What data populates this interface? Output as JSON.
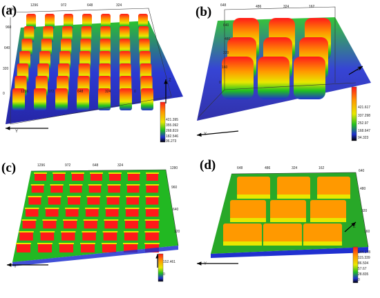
{
  "panels": [
    {
      "label": "(a)",
      "top_ticks": [
        "1296",
        "972",
        "648",
        "324"
      ],
      "left_ticks": [
        "1296",
        "960",
        "640",
        "320",
        "0"
      ],
      "bottom_ticks": [
        "1296",
        "972",
        "648",
        "324",
        "0"
      ],
      "axis_z": "Z",
      "axis_y": "Y",
      "colorbar": [
        "421.395",
        "355.092",
        "268.819",
        "182.546",
        "96.273"
      ]
    },
    {
      "label": "(b)",
      "top_ticks": [
        "648",
        "486",
        "324",
        "162"
      ],
      "left_ticks": [
        "640",
        "480",
        "320",
        "160",
        "0"
      ],
      "axis_z": "Z",
      "axis_y": "Y",
      "colorbar": [
        "421.617",
        "337.298",
        "252.97",
        "168.647",
        "94.323"
      ]
    },
    {
      "label": "(c)",
      "top_ticks": [
        "1296",
        "972",
        "648",
        "324"
      ],
      "right_ticks": [
        "1280",
        "960",
        "640",
        "320"
      ],
      "axis_y": "Y",
      "colorbar": [
        "152.461",
        "0"
      ]
    },
    {
      "label": "(d)",
      "top_ticks": [
        "648",
        "486",
        "324",
        "162"
      ],
      "right_ticks": [
        "640",
        "480",
        "320",
        "160"
      ],
      "axis_z": "Z",
      "axis_y": "Y",
      "colorbar": [
        "144.178",
        "115.339",
        "86.504",
        "57.67",
        "28.835",
        "0"
      ]
    }
  ],
  "colors": {
    "high": "#ff1a1a",
    "mid_high": "#ff9900",
    "mid": "#e8e800",
    "mid_low": "#20c020",
    "low": "#2030d0",
    "floor": "#1a1aa0"
  }
}
